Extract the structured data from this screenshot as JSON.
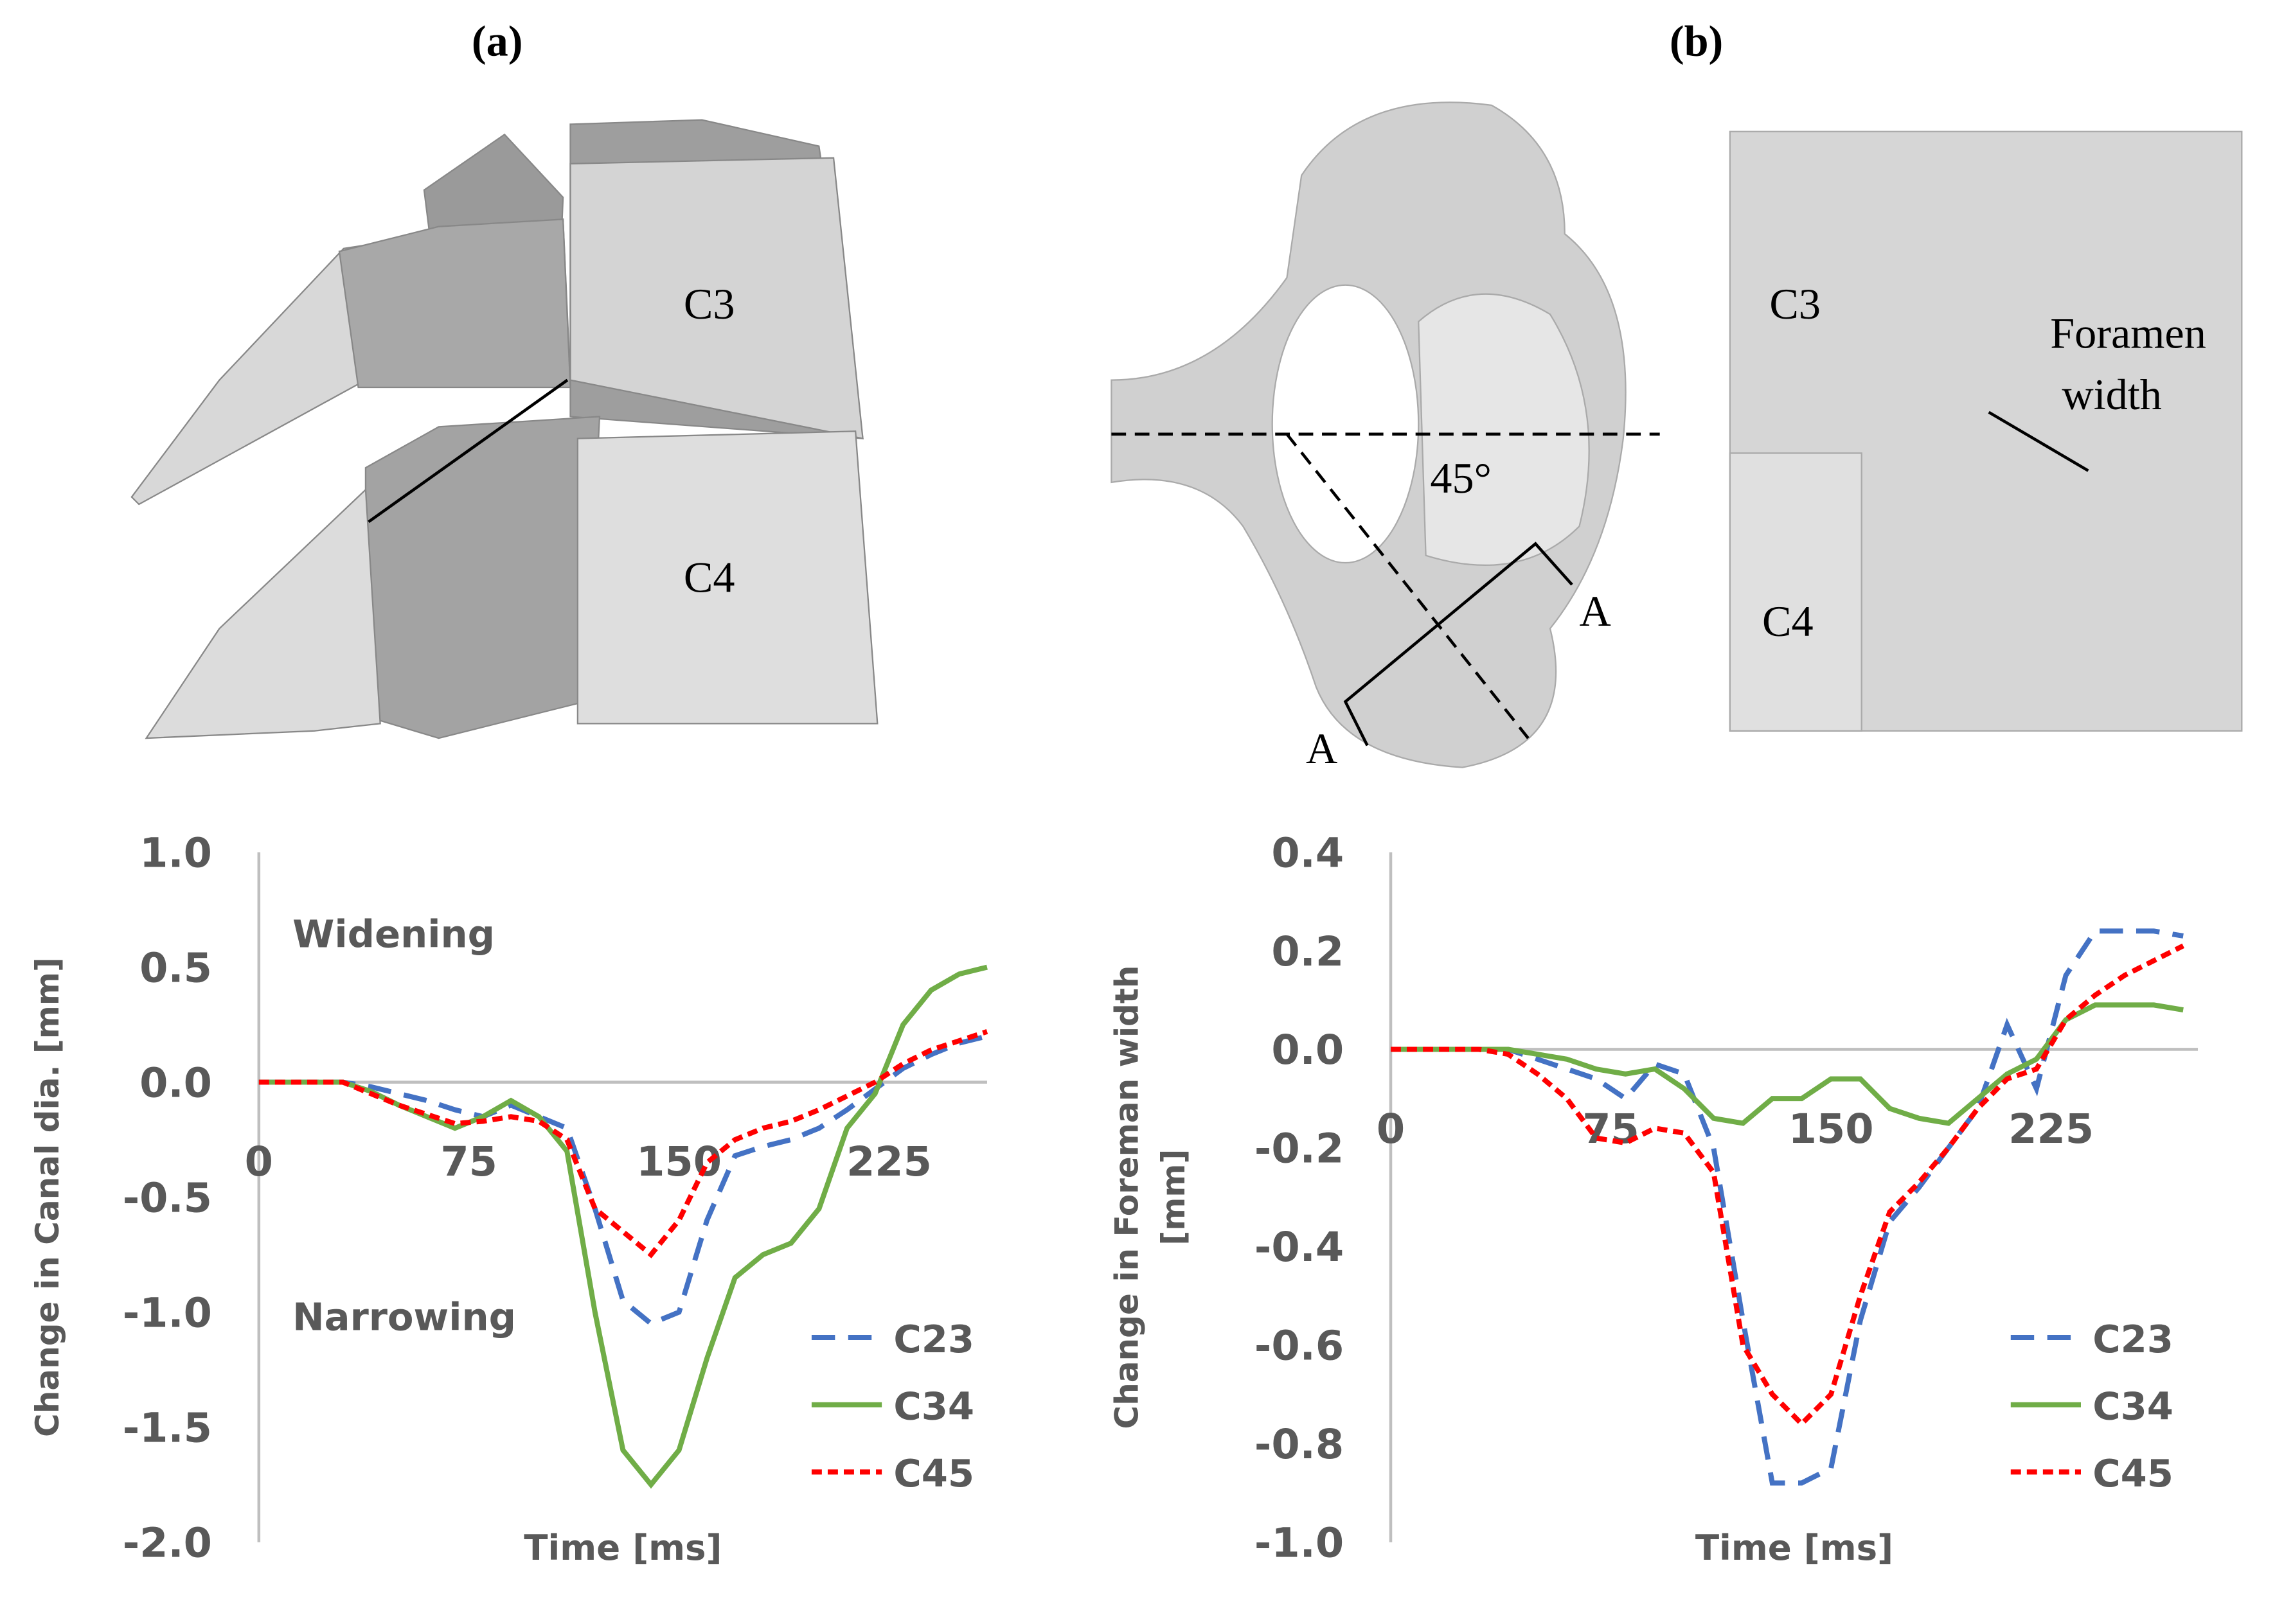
{
  "figure": {
    "panel_a": "(a)",
    "panel_b": "(b)",
    "a_upper": "C3",
    "a_lower": "C4",
    "angle": "45°",
    "section_1": "A",
    "section_2": "A",
    "b_upper": "C3",
    "b_lower": "C4",
    "foramen_1": "Foramen",
    "foramen_2": "width"
  },
  "chart_data": [
    {
      "type": "line",
      "xlabel": "Time [ms]",
      "ylabel": [
        "Change in Canal dia. [mm]"
      ],
      "annotations": [
        "Widening",
        "Narrowing"
      ],
      "xlim": [
        0,
        260
      ],
      "xticks": [
        0,
        75,
        150,
        225
      ],
      "ylim": [
        -2,
        1
      ],
      "yticks": [
        {
          "value": 1,
          "label": "1.0"
        },
        {
          "value": 0.5,
          "label": "0.5"
        },
        {
          "value": 0,
          "label": "0.0"
        },
        {
          "value": -0.5,
          "label": "-0.5"
        },
        {
          "value": -1,
          "label": "-1.0"
        },
        {
          "value": -1.5,
          "label": "-1.5"
        },
        {
          "value": -2,
          "label": "-2.0"
        }
      ],
      "x": [
        0,
        10,
        20,
        30,
        40,
        50,
        60,
        70,
        80,
        90,
        100,
        110,
        120,
        130,
        140,
        150,
        160,
        170,
        180,
        190,
        200,
        210,
        220,
        230,
        240,
        250,
        260
      ],
      "series": [
        {
          "name": "C23",
          "color": "#4472c4",
          "linestyle": "dashed",
          "values": [
            0,
            0,
            0,
            0,
            -0.02,
            -0.05,
            -0.08,
            -0.12,
            -0.15,
            -0.1,
            -0.15,
            -0.2,
            -0.55,
            -0.95,
            -1.05,
            -1.0,
            -0.6,
            -0.32,
            -0.28,
            -0.25,
            -0.2,
            -0.12,
            -0.03,
            0.06,
            0.12,
            0.17,
            0.2
          ]
        },
        {
          "name": "C34",
          "color": "#70ad47",
          "linestyle": "solid",
          "values": [
            0,
            0,
            0,
            0,
            -0.04,
            -0.1,
            -0.15,
            -0.2,
            -0.15,
            -0.08,
            -0.15,
            -0.3,
            -1.0,
            -1.6,
            -1.75,
            -1.6,
            -1.2,
            -0.85,
            -0.75,
            -0.7,
            -0.55,
            -0.2,
            -0.05,
            0.25,
            0.4,
            0.47,
            0.5
          ]
        },
        {
          "name": "C45",
          "color": "#ff0000",
          "linestyle": "dotted",
          "values": [
            0,
            0,
            0,
            0,
            -0.05,
            -0.1,
            -0.14,
            -0.18,
            -0.17,
            -0.15,
            -0.17,
            -0.25,
            -0.55,
            -0.65,
            -0.75,
            -0.6,
            -0.35,
            -0.25,
            -0.2,
            -0.17,
            -0.12,
            -0.06,
            0.0,
            0.08,
            0.14,
            0.18,
            0.22
          ]
        }
      ]
    },
    {
      "type": "line",
      "xlabel": "Time [ms]",
      "ylabel": [
        "Change in Foreman width",
        "[mm]"
      ],
      "xlim": [
        0,
        275
      ],
      "xticks": [
        0,
        75,
        150,
        225
      ],
      "ylim": [
        -1,
        0.4
      ],
      "yticks": [
        {
          "value": 0.4,
          "label": "0.4"
        },
        {
          "value": 0.2,
          "label": "0.2"
        },
        {
          "value": 0,
          "label": "0.0"
        },
        {
          "value": -0.2,
          "label": "-0.2"
        },
        {
          "value": -0.4,
          "label": "-0.4"
        },
        {
          "value": -0.6,
          "label": "-0.6"
        },
        {
          "value": -0.8,
          "label": "-0.8"
        },
        {
          "value": -1,
          "label": "-1.0"
        }
      ],
      "x": [
        0,
        10,
        20,
        30,
        40,
        50,
        60,
        70,
        80,
        90,
        100,
        110,
        120,
        130,
        140,
        150,
        160,
        170,
        180,
        190,
        200,
        210,
        220,
        230,
        240,
        250,
        260,
        270
      ],
      "series": [
        {
          "name": "C23",
          "color": "#4472c4",
          "linestyle": "dashed",
          "values": [
            0,
            0,
            0,
            0,
            0,
            -0.02,
            -0.04,
            -0.06,
            -0.1,
            -0.03,
            -0.05,
            -0.2,
            -0.55,
            -0.88,
            -0.88,
            -0.85,
            -0.55,
            -0.35,
            -0.28,
            -0.2,
            -0.12,
            0.05,
            -0.08,
            0.15,
            0.24,
            0.24,
            0.24,
            0.23
          ]
        },
        {
          "name": "C34",
          "color": "#70ad47",
          "linestyle": "solid",
          "values": [
            0,
            0,
            0,
            0,
            0,
            -0.01,
            -0.02,
            -0.04,
            -0.05,
            -0.04,
            -0.08,
            -0.14,
            -0.15,
            -0.1,
            -0.1,
            -0.06,
            -0.06,
            -0.12,
            -0.14,
            -0.15,
            -0.1,
            -0.05,
            -0.02,
            0.06,
            0.09,
            0.09,
            0.09,
            0.08
          ]
        },
        {
          "name": "C45",
          "color": "#ff0000",
          "linestyle": "dotted",
          "values": [
            0,
            0,
            0,
            0,
            -0.01,
            -0.05,
            -0.1,
            -0.18,
            -0.19,
            -0.16,
            -0.17,
            -0.25,
            -0.6,
            -0.7,
            -0.76,
            -0.7,
            -0.5,
            -0.33,
            -0.27,
            -0.2,
            -0.12,
            -0.06,
            -0.04,
            0.06,
            0.11,
            0.15,
            0.18,
            0.21
          ]
        }
      ]
    }
  ]
}
